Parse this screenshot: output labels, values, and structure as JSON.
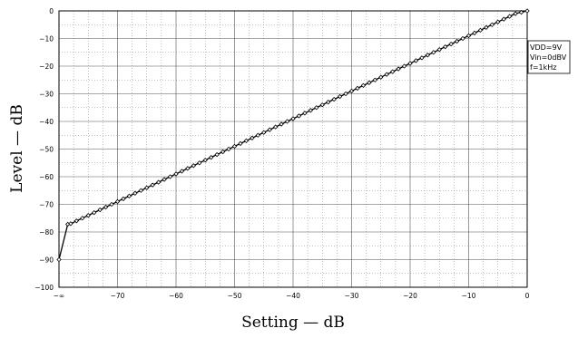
{
  "chart_data": {
    "type": "line",
    "xlabel": "Setting — dB",
    "ylabel": "Level — dB",
    "xlim": [
      -80,
      0
    ],
    "ylim": [
      -100,
      0
    ],
    "x_ticks": [
      {
        "value": -80,
        "label": "−∞"
      },
      {
        "value": -70,
        "label": "−70"
      },
      {
        "value": -60,
        "label": "−60"
      },
      {
        "value": -50,
        "label": "−50"
      },
      {
        "value": -40,
        "label": "−40"
      },
      {
        "value": -30,
        "label": "−30"
      },
      {
        "value": -20,
        "label": "−20"
      },
      {
        "value": -10,
        "label": "−10"
      },
      {
        "value": 0,
        "label": "0"
      }
    ],
    "y_ticks": [
      {
        "value": 0,
        "label": "0"
      },
      {
        "value": -10,
        "label": "−10"
      },
      {
        "value": -20,
        "label": "−20"
      },
      {
        "value": -30,
        "label": "−30"
      },
      {
        "value": -40,
        "label": "−40"
      },
      {
        "value": -50,
        "label": "−50"
      },
      {
        "value": -60,
        "label": "−60"
      },
      {
        "value": -70,
        "label": "−70"
      },
      {
        "value": -80,
        "label": "−80"
      },
      {
        "value": -90,
        "label": "−90"
      },
      {
        "value": -100,
        "label": "−100"
      }
    ],
    "grid": true,
    "minor_grid": "dotted",
    "marker": "open-diamond",
    "annotation": {
      "lines": [
        "VDD=9V",
        "Vin=0dBV",
        "f=1kHz"
      ],
      "placement": "right"
    },
    "series": [
      {
        "x": [
          -80,
          -78.5,
          -78,
          -77,
          -76,
          -75,
          -74,
          -73,
          -72,
          -71,
          -70,
          -69,
          -68,
          -67,
          -66,
          -65,
          -64,
          -63,
          -62,
          -61,
          -60,
          -59,
          -58,
          -57,
          -56,
          -55,
          -54,
          -53,
          -52,
          -51,
          -50,
          -49,
          -48,
          -47,
          -46,
          -45,
          -44,
          -43,
          -42,
          -41,
          -40,
          -39,
          -38,
          -37,
          -36,
          -35,
          -34,
          -33,
          -32,
          -31,
          -30,
          -29,
          -28,
          -27,
          -26,
          -25,
          -24,
          -23,
          -22,
          -21,
          -20,
          -19,
          -18,
          -17,
          -16,
          -15,
          -14,
          -13,
          -12,
          -11,
          -10,
          -9,
          -8,
          -7,
          -6,
          -5,
          -4,
          -3,
          -2,
          -1,
          0
        ],
        "y": [
          -90,
          -77.2,
          -77,
          -76,
          -75,
          -74,
          -73,
          -72,
          -71,
          -70,
          -69,
          -68,
          -67,
          -66,
          -65,
          -64,
          -63,
          -62,
          -61,
          -60,
          -59,
          -58,
          -57,
          -56,
          -55,
          -54,
          -53,
          -52,
          -51,
          -50,
          -49,
          -48,
          -47,
          -46,
          -45,
          -44,
          -43,
          -42,
          -41,
          -40,
          -39,
          -38,
          -37,
          -36,
          -35,
          -34,
          -33,
          -32,
          -31,
          -30,
          -29,
          -28,
          -27,
          -26,
          -25,
          -24,
          -23,
          -22,
          -21,
          -20,
          -19,
          -18,
          -17,
          -16,
          -15,
          -14,
          -13,
          -12,
          -11,
          -10,
          -9,
          -8,
          -7,
          -6,
          -5,
          -4,
          -3,
          -2,
          -1,
          -0.5,
          0
        ]
      }
    ]
  }
}
